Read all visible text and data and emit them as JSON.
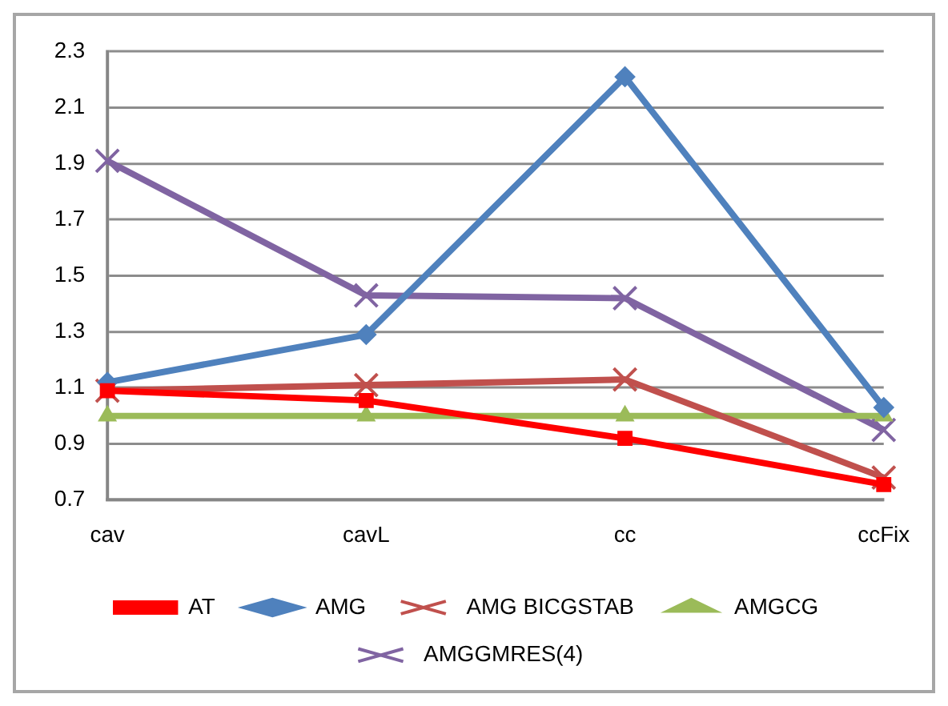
{
  "chart_data": {
    "type": "line",
    "categories": [
      "cav",
      "cavL",
      "cc",
      "ccFix"
    ],
    "series": [
      {
        "name": "AT",
        "color": "#ff0000",
        "marker": "square",
        "values": [
          1.09,
          1.055,
          0.92,
          0.755
        ]
      },
      {
        "name": "AMG",
        "color": "#4f81bd",
        "marker": "diamond",
        "values": [
          1.12,
          1.29,
          2.21,
          1.03
        ]
      },
      {
        "name": "AMG BICGSTAB",
        "color": "#c0504d",
        "marker": "cross",
        "values": [
          1.09,
          1.11,
          1.13,
          0.78
        ]
      },
      {
        "name": "AMGCG",
        "color": "#9bbb59",
        "marker": "triangle",
        "values": [
          1.0,
          1.0,
          1.0,
          1.0
        ]
      },
      {
        "name": "AMGGMRES(4)",
        "color": "#8064a2",
        "marker": "cross",
        "values": [
          1.91,
          1.43,
          1.42,
          0.95
        ]
      }
    ],
    "ylim": [
      0.7,
      2.3
    ],
    "yticks": [
      0.7,
      0.9,
      1.1,
      1.3,
      1.5,
      1.7,
      1.9,
      2.1,
      2.3
    ],
    "grid": "y",
    "legend": "bottom",
    "line_style": "solid"
  }
}
